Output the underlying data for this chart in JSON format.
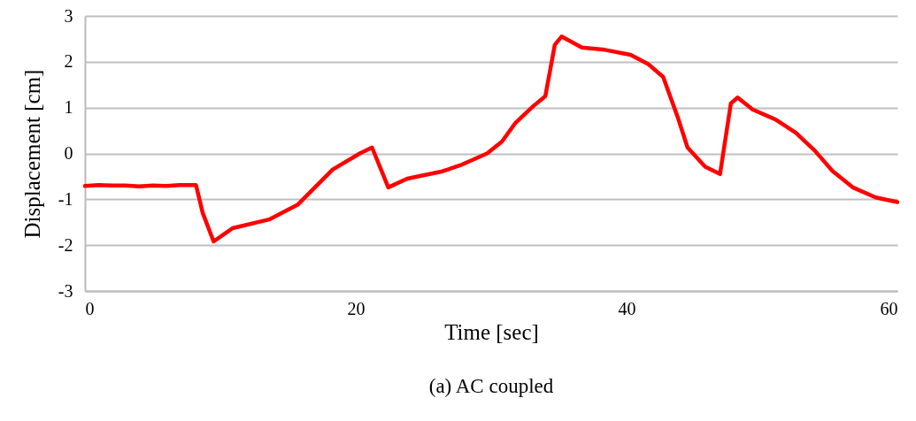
{
  "chart_data": {
    "type": "line",
    "xlabel": "Time [sec]",
    "ylabel": "Displacement [cm]",
    "annotations": [
      "(a) AC coupled"
    ],
    "x": [
      0,
      1,
      2,
      3,
      4,
      5,
      6,
      7,
      8.2,
      8.7,
      9.5,
      10.9,
      13.6,
      15.7,
      18.3,
      20.3,
      21.2,
      22.4,
      23.8,
      26.4,
      27.7,
      29.7,
      30.8,
      31.8,
      33.1,
      34.0,
      34.7,
      35.2,
      36.7,
      38.4,
      40.3,
      41.6,
      42.7,
      43.8,
      44.5,
      45.8,
      46.9,
      47.7,
      48.2,
      49.3,
      51.0,
      52.5,
      53.9,
      55.2,
      56.7,
      58.4,
      60
    ],
    "series": [
      {
        "color": "#ff0000",
        "values": [
          -0.71,
          -0.69,
          -0.7,
          -0.7,
          -0.72,
          -0.7,
          -0.71,
          -0.69,
          -0.69,
          -1.3,
          -1.92,
          -1.63,
          -1.44,
          -1.12,
          -0.35,
          0,
          0.13,
          -0.74,
          -0.55,
          -0.39,
          -0.26,
          0,
          0.26,
          0.67,
          1.03,
          1.25,
          2.37,
          2.55,
          2.31,
          2.26,
          2.15,
          1.95,
          1.67,
          0.77,
          0.13,
          -0.29,
          -0.45,
          1.09,
          1.22,
          0.96,
          0.74,
          0.45,
          0.06,
          -0.38,
          -0.74,
          -0.96,
          -1.06
        ]
      }
    ],
    "xlim": [
      0,
      60
    ],
    "xticks": [
      0,
      20,
      40,
      60
    ],
    "ylim": [
      -3,
      3
    ],
    "yticks": [
      -3,
      -2,
      -1,
      0,
      1,
      2,
      3
    ],
    "grid": "y",
    "marker": "none",
    "line_style": "solid"
  }
}
